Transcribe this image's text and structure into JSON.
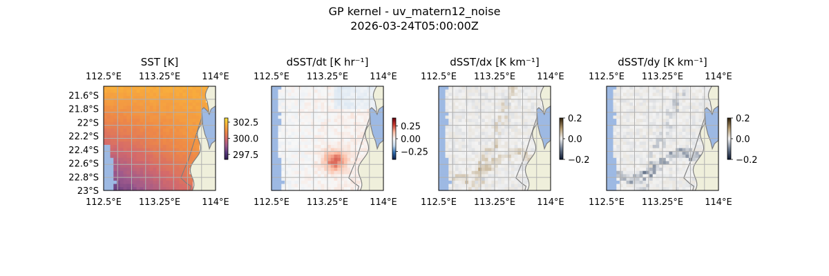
{
  "suptitle": "GP kernel - uv_matern12_noise",
  "subtitle": "2026-03-24T05:00:00Z",
  "colors": {
    "ocean_nodata": "#9db9e3",
    "land": "#efefdb",
    "coast": "#7f7f7f",
    "grid": "#b0b0b0",
    "sst_ramp": [
      "#2b1a4d",
      "#5a3a7e",
      "#a05a8c",
      "#d56a6a",
      "#ef8a46",
      "#f9b03c",
      "#f5e23a"
    ],
    "diverging_ramp": [
      "#0a1d4a",
      "#2f6cae",
      "#c6dbef",
      "#f7f7f7",
      "#fcbba1",
      "#cb3a30",
      "#67000d"
    ],
    "gray_ramp": [
      "#0c1730",
      "#6c7a8f",
      "#f3f3f3",
      "#b39a70",
      "#2a1c06"
    ]
  },
  "chart_data": [
    {
      "type": "heatmap",
      "title": "SST [K]",
      "x_ticks": [
        "112.5°E",
        "113.25°E",
        "114°E"
      ],
      "y_ticks": [
        "21.6°S",
        "21.8°S",
        "22°S",
        "22.2°S",
        "22.4°S",
        "22.6°S",
        "22.8°S",
        "23°S"
      ],
      "show_left_labels": true,
      "colorbar": {
        "ticks": [
          "302.5",
          "300.0",
          "297.5"
        ],
        "range": [
          297.0,
          303.5
        ],
        "colormap": "plasma"
      },
      "field": "sst"
    },
    {
      "type": "heatmap",
      "title": "dSST/dt [K hr⁻¹]",
      "x_ticks": [
        "112.5°E",
        "113.25°E",
        "114°E"
      ],
      "y_ticks": [],
      "show_left_labels": false,
      "colorbar": {
        "ticks": [
          "0.25",
          "0.00",
          "−0.25"
        ],
        "range": [
          -0.4,
          0.4
        ],
        "colormap": "diverging"
      },
      "field": "dt"
    },
    {
      "type": "heatmap",
      "title": "dSST/dx [K km⁻¹]",
      "x_ticks": [
        "112.5°E",
        "113.25°E",
        "114°E"
      ],
      "y_ticks": [],
      "show_left_labels": false,
      "colorbar": {
        "ticks": [
          "0.2",
          "0.0",
          "−0.2"
        ],
        "range": [
          -0.2,
          0.2
        ],
        "colormap": "gray-diverging"
      },
      "field": "dx"
    },
    {
      "type": "heatmap",
      "title": "dSST/dy [K km⁻¹]",
      "x_ticks": [
        "112.5°E",
        "113.25°E",
        "114°E"
      ],
      "y_ticks": [],
      "show_left_labels": false,
      "colorbar": {
        "ticks": [
          "0.2",
          "0.0",
          "−0.2"
        ],
        "range": [
          -0.2,
          0.2
        ],
        "colormap": "gray-diverging"
      },
      "field": "dy"
    }
  ]
}
